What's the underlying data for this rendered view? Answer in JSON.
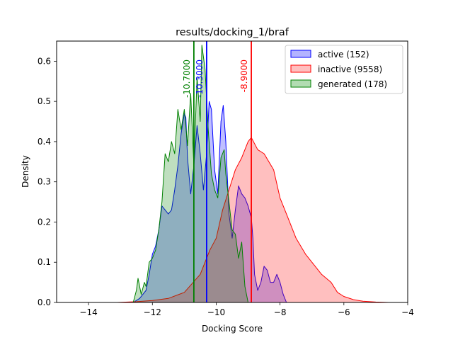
{
  "chart_data": {
    "type": "area",
    "title": "results/docking_1/braf",
    "xlabel": "Docking Score",
    "ylabel": "Density",
    "xlim": [
      -15,
      -4
    ],
    "ylim": [
      0,
      0.65
    ],
    "xticks": [
      -14,
      -12,
      -10,
      -8,
      -6,
      -4
    ],
    "yticks": [
      0.0,
      0.1,
      0.2,
      0.3,
      0.4,
      0.5,
      0.6
    ],
    "grid": false,
    "legend_position": "top-right",
    "series": [
      {
        "name": "active (152)",
        "color": "#0000ff",
        "fill": "#b3b3ff",
        "mean_line": -10.3,
        "mean_label": "-10.3000",
        "points": [
          [
            -12.6,
            0
          ],
          [
            -12.4,
            0.01
          ],
          [
            -12.2,
            0.03
          ],
          [
            -12.1,
            0.07
          ],
          [
            -12.0,
            0.12
          ],
          [
            -11.9,
            0.14
          ],
          [
            -11.8,
            0.18
          ],
          [
            -11.7,
            0.24
          ],
          [
            -11.6,
            0.23
          ],
          [
            -11.5,
            0.22
          ],
          [
            -11.4,
            0.23
          ],
          [
            -11.3,
            0.28
          ],
          [
            -11.2,
            0.34
          ],
          [
            -11.1,
            0.42
          ],
          [
            -11.0,
            0.47
          ],
          [
            -10.95,
            0.46
          ],
          [
            -10.9,
            0.36
          ],
          [
            -10.8,
            0.27
          ],
          [
            -10.7,
            0.34
          ],
          [
            -10.6,
            0.44
          ],
          [
            -10.5,
            0.37
          ],
          [
            -10.4,
            0.28
          ],
          [
            -10.3,
            0.37
          ],
          [
            -10.22,
            0.5
          ],
          [
            -10.15,
            0.48
          ],
          [
            -10.05,
            0.33
          ],
          [
            -9.95,
            0.27
          ],
          [
            -9.85,
            0.45
          ],
          [
            -9.78,
            0.49
          ],
          [
            -9.7,
            0.4
          ],
          [
            -9.6,
            0.22
          ],
          [
            -9.5,
            0.16
          ],
          [
            -9.4,
            0.23
          ],
          [
            -9.3,
            0.29
          ],
          [
            -9.2,
            0.27
          ],
          [
            -9.1,
            0.26
          ],
          [
            -9.0,
            0.24
          ],
          [
            -8.9,
            0.21
          ],
          [
            -8.85,
            0.16
          ],
          [
            -8.8,
            0.07
          ],
          [
            -8.7,
            0.03
          ],
          [
            -8.6,
            0.05
          ],
          [
            -8.5,
            0.09
          ],
          [
            -8.4,
            0.08
          ],
          [
            -8.3,
            0.05
          ],
          [
            -8.2,
            0.05
          ],
          [
            -8.1,
            0.07
          ],
          [
            -8.0,
            0.05
          ],
          [
            -7.9,
            0.02
          ],
          [
            -7.8,
            0
          ]
        ]
      },
      {
        "name": "inactive (9558)",
        "color": "#ff0000",
        "fill": "#ffbfbf",
        "mean_line": -8.9,
        "mean_label": "-8.9000",
        "points": [
          [
            -13.1,
            0
          ],
          [
            -12.5,
            0.002
          ],
          [
            -12,
            0.005
          ],
          [
            -11.5,
            0.01
          ],
          [
            -11,
            0.025
          ],
          [
            -10.5,
            0.07
          ],
          [
            -10.2,
            0.13
          ],
          [
            -10,
            0.16
          ],
          [
            -9.8,
            0.23
          ],
          [
            -9.6,
            0.28
          ],
          [
            -9.4,
            0.33
          ],
          [
            -9.2,
            0.36
          ],
          [
            -9.0,
            0.4
          ],
          [
            -8.9,
            0.41
          ],
          [
            -8.7,
            0.38
          ],
          [
            -8.5,
            0.37
          ],
          [
            -8.2,
            0.33
          ],
          [
            -8.0,
            0.26
          ],
          [
            -7.8,
            0.22
          ],
          [
            -7.5,
            0.16
          ],
          [
            -7.2,
            0.12
          ],
          [
            -7.0,
            0.1
          ],
          [
            -6.7,
            0.07
          ],
          [
            -6.4,
            0.05
          ],
          [
            -6.2,
            0.025
          ],
          [
            -6,
            0.015
          ],
          [
            -5.7,
            0.007
          ],
          [
            -5.4,
            0.003
          ],
          [
            -5,
            0.001
          ],
          [
            -4.6,
            0
          ]
        ]
      },
      {
        "name": "generated (178)",
        "color": "#008000",
        "fill": "#b2dcb2",
        "mean_line": -10.7,
        "mean_label": "-10.7000",
        "points": [
          [
            -12.6,
            0
          ],
          [
            -12.5,
            0.03
          ],
          [
            -12.45,
            0.06
          ],
          [
            -12.35,
            0.02
          ],
          [
            -12.25,
            0.05
          ],
          [
            -12.2,
            0.04
          ],
          [
            -12.1,
            0.1
          ],
          [
            -12.0,
            0.11
          ],
          [
            -11.9,
            0.13
          ],
          [
            -11.8,
            0.18
          ],
          [
            -11.7,
            0.25
          ],
          [
            -11.6,
            0.37
          ],
          [
            -11.5,
            0.35
          ],
          [
            -11.4,
            0.4
          ],
          [
            -11.3,
            0.37
          ],
          [
            -11.2,
            0.48
          ],
          [
            -11.1,
            0.43
          ],
          [
            -11.0,
            0.48
          ],
          [
            -10.9,
            0.39
          ],
          [
            -10.8,
            0.52
          ],
          [
            -10.7,
            0.34
          ],
          [
            -10.6,
            0.56
          ],
          [
            -10.5,
            0.45
          ],
          [
            -10.45,
            0.64
          ],
          [
            -10.35,
            0.58
          ],
          [
            -10.25,
            0.43
          ],
          [
            -10.15,
            0.32
          ],
          [
            -10.05,
            0.28
          ],
          [
            -9.95,
            0.26
          ],
          [
            -9.85,
            0.36
          ],
          [
            -9.75,
            0.38
          ],
          [
            -9.7,
            0.32
          ],
          [
            -9.6,
            0.25
          ],
          [
            -9.5,
            0.18
          ],
          [
            -9.4,
            0.17
          ],
          [
            -9.3,
            0.11
          ],
          [
            -9.2,
            0.15
          ],
          [
            -9.1,
            0.04
          ],
          [
            -9.0,
            0
          ]
        ]
      }
    ]
  }
}
